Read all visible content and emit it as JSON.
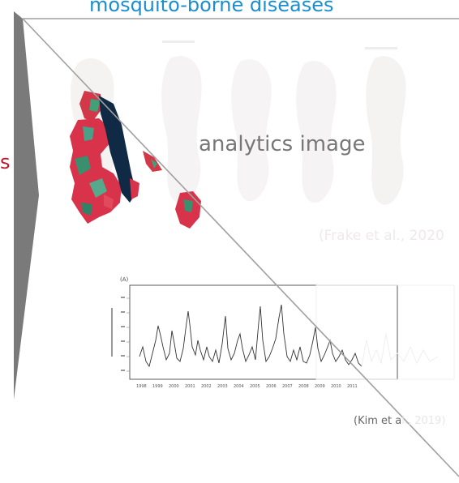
{
  "header": {
    "title": "mosquito-borne diseases"
  },
  "side_mark": "s",
  "overlay_label": "analytics image",
  "citations": {
    "first": "(Frake et al., 2020",
    "second_lead": "(Kim et a",
    "second_tail": "l., 2019)"
  },
  "plot_panel": {
    "panel_label": "(A)"
  },
  "colors": {
    "title": "#1a8fd0",
    "accent_red": "#c0172e",
    "arrow": "#7a7a7a",
    "diagonal": "#a0a0a0"
  }
}
